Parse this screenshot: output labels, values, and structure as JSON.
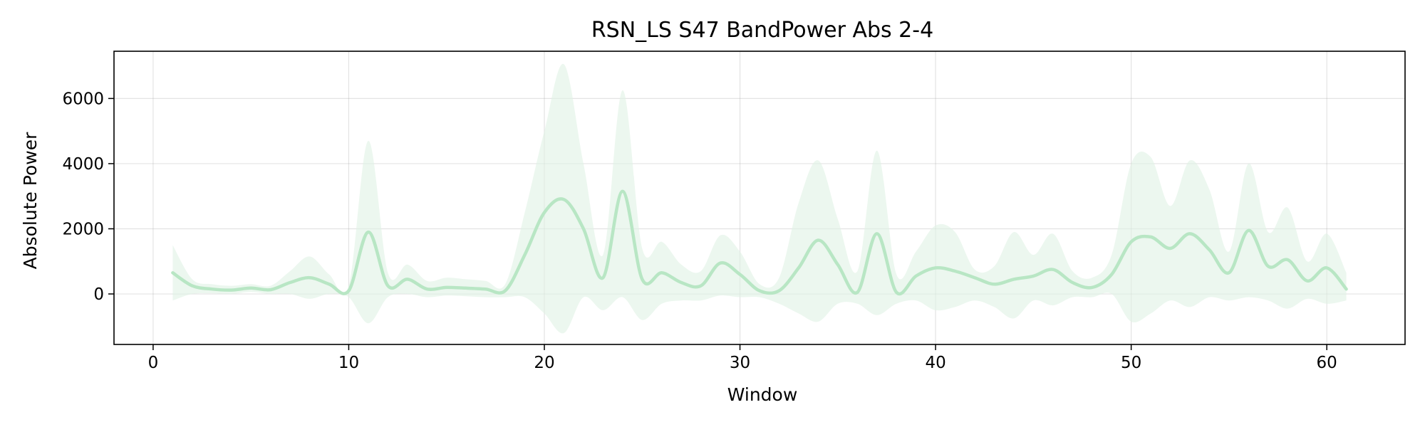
{
  "chart_data": {
    "type": "area",
    "title": "RSN_LS S47 BandPower Abs 2-4",
    "xlabel": "Window",
    "ylabel": "Absolute Power",
    "xlim": [
      -2,
      64
    ],
    "ylim": [
      -1550,
      7450
    ],
    "xticks": [
      0,
      10,
      20,
      30,
      40,
      50,
      60
    ],
    "yticks": [
      0,
      2000,
      4000,
      6000
    ],
    "grid": true,
    "line_color": "#b8e6c4",
    "band_color": "#dff2e4",
    "series": [
      {
        "x": [
          1,
          2,
          3,
          4,
          5,
          6,
          7,
          8,
          9,
          10,
          11,
          12,
          13,
          14,
          15,
          16,
          17,
          18,
          19,
          20,
          21,
          22,
          23,
          24,
          25,
          26,
          27,
          28,
          29,
          30,
          31,
          32,
          33,
          34,
          35,
          36,
          37,
          38,
          39,
          40,
          41,
          42,
          43,
          44,
          45,
          46,
          47,
          48,
          49,
          50,
          51,
          52,
          53,
          54,
          55,
          56,
          57,
          58,
          59,
          60,
          61
        ],
        "mean": [
          650,
          250,
          150,
          120,
          180,
          130,
          350,
          500,
          300,
          100,
          1900,
          250,
          450,
          150,
          200,
          180,
          150,
          100,
          1200,
          2500,
          2900,
          2000,
          500,
          3150,
          450,
          650,
          350,
          250,
          950,
          600,
          100,
          100,
          800,
          1650,
          900,
          50,
          1850,
          50,
          550,
          800,
          700,
          500,
          300,
          450,
          550,
          750,
          350,
          200,
          600,
          1600,
          1750,
          1400,
          1850,
          1350,
          650,
          1950,
          850,
          1050,
          400,
          800,
          150
        ],
        "upper": [
          1500,
          450,
          300,
          250,
          300,
          250,
          700,
          1150,
          600,
          250,
          4700,
          650,
          900,
          400,
          500,
          450,
          400,
          300,
          2500,
          5000,
          7050,
          4000,
          1200,
          6250,
          1400,
          1600,
          900,
          700,
          1800,
          1300,
          300,
          500,
          2800,
          4100,
          2300,
          700,
          4400,
          600,
          1300,
          2100,
          1900,
          750,
          850,
          1900,
          1200,
          1850,
          700,
          500,
          1200,
          4000,
          4200,
          2700,
          4100,
          3200,
          1300,
          4000,
          1900,
          2650,
          1000,
          1850,
          650
        ],
        "lower": [
          -200,
          0,
          20,
          0,
          60,
          0,
          0,
          -150,
          0,
          -100,
          -900,
          -100,
          0,
          -100,
          -50,
          -70,
          -100,
          -100,
          -100,
          -600,
          -1200,
          -100,
          -500,
          -100,
          -800,
          -300,
          -200,
          -200,
          -50,
          -100,
          -100,
          -300,
          -600,
          -850,
          -300,
          -300,
          -650,
          -300,
          -200,
          -500,
          -400,
          -200,
          -400,
          -750,
          -200,
          -350,
          -100,
          -100,
          0,
          -850,
          -600,
          -200,
          -400,
          -100,
          -200,
          -100,
          -200,
          -450,
          -150,
          -300,
          -200
        ]
      }
    ]
  }
}
